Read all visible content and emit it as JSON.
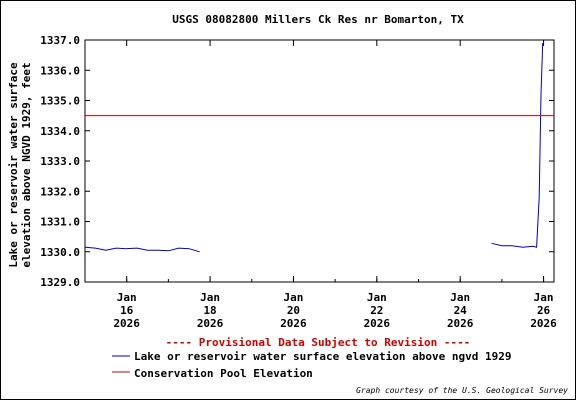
{
  "chart_data": {
    "type": "line",
    "title": "USGS 08082800 Millers Ck Res nr Bomarton, TX",
    "ylabel_line1": "Lake or reservoir water surface",
    "ylabel_line2": "elevation above NGVD 1929, feet",
    "ylim": [
      1329.0,
      1337.0
    ],
    "yticks": [
      "1337.0",
      "1336.0",
      "1335.0",
      "1334.0",
      "1333.0",
      "1332.0",
      "1331.0",
      "1330.0",
      "1329.0"
    ],
    "xlim": [
      "2026-01-15 00:00",
      "2026-01-26 06:00"
    ],
    "xticks": [
      {
        "date": "2026-01-16",
        "label": [
          "Jan",
          "16",
          "2026"
        ]
      },
      {
        "date": "2026-01-18",
        "label": [
          "Jan",
          "18",
          "2026"
        ]
      },
      {
        "date": "2026-01-20",
        "label": [
          "Jan",
          "20",
          "2026"
        ]
      },
      {
        "date": "2026-01-22",
        "label": [
          "Jan",
          "22",
          "2026"
        ]
      },
      {
        "date": "2026-01-24",
        "label": [
          "Jan",
          "24",
          "2026"
        ]
      },
      {
        "date": "2026-01-26",
        "label": [
          "Jan",
          "26",
          "2026"
        ]
      }
    ],
    "grid": false,
    "series": [
      {
        "name": "Lake or reservoir water surface elevation above ngvd 1929",
        "color": "#0000cc",
        "segments": [
          [
            {
              "x": "2026-01-15 00:00",
              "y": 1330.15
            },
            {
              "x": "2026-01-15 06:00",
              "y": 1330.12
            },
            {
              "x": "2026-01-15 12:00",
              "y": 1330.05
            },
            {
              "x": "2026-01-15 18:00",
              "y": 1330.12
            },
            {
              "x": "2026-01-16 00:00",
              "y": 1330.1
            },
            {
              "x": "2026-01-16 06:00",
              "y": 1330.12
            },
            {
              "x": "2026-01-16 12:00",
              "y": 1330.05
            },
            {
              "x": "2026-01-16 18:00",
              "y": 1330.05
            },
            {
              "x": "2026-01-17 00:00",
              "y": 1330.03
            },
            {
              "x": "2026-01-17 06:00",
              "y": 1330.12
            },
            {
              "x": "2026-01-17 12:00",
              "y": 1330.1
            },
            {
              "x": "2026-01-17 18:00",
              "y": 1330.0
            }
          ],
          [
            {
              "x": "2026-01-24 18:00",
              "y": 1330.28
            },
            {
              "x": "2026-01-25 00:00",
              "y": 1330.2
            },
            {
              "x": "2026-01-25 06:00",
              "y": 1330.2
            },
            {
              "x": "2026-01-25 12:00",
              "y": 1330.15
            },
            {
              "x": "2026-01-25 18:00",
              "y": 1330.18
            },
            {
              "x": "2026-01-25 20:00",
              "y": 1330.15
            },
            {
              "x": "2026-01-25 21:30",
              "y": 1331.8
            },
            {
              "x": "2026-01-25 22:30",
              "y": 1335.2
            },
            {
              "x": "2026-01-25 23:30",
              "y": 1336.9
            }
          ]
        ]
      },
      {
        "name": "Conservation Pool Elevation",
        "color": "#cc0000",
        "constant": 1334.5
      }
    ],
    "provisional_note": "---- Provisional Data Subject to Revision ----",
    "credit": "Graph courtesy of the U.S. Geological Survey"
  }
}
